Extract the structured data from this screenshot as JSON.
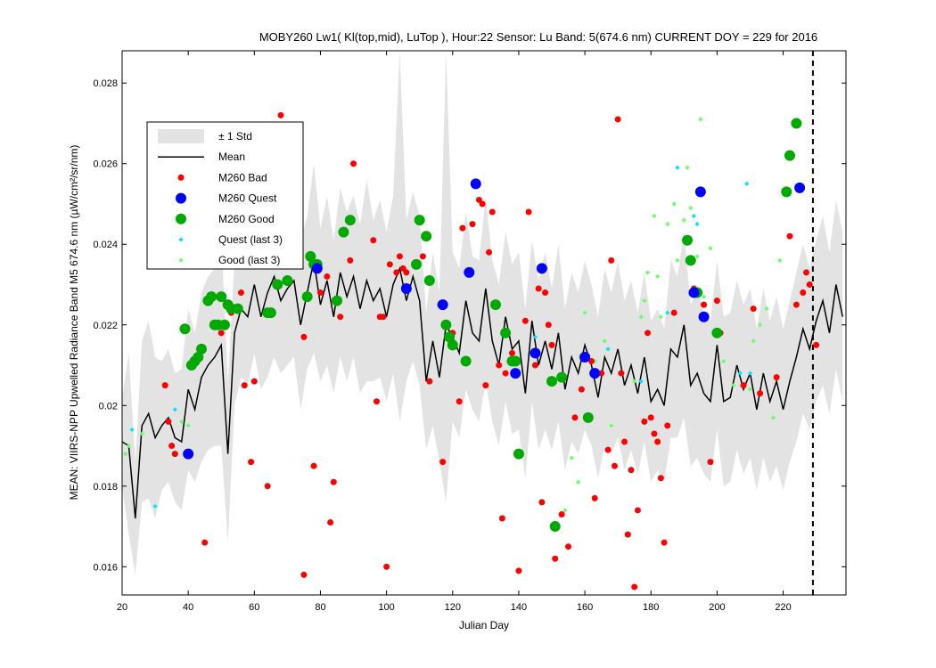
{
  "chart_data": {
    "type": "scatter",
    "title": "MOBY260   Lw1( Kl(top,mid), LuTop ),   Hour:22 Sensor: Lu Band: 5(674.6 nm)   CURRENT DOY = 229 for 2016",
    "xlabel": "Julian Day",
    "ylabel": "MEAN: VIIRS-NPP Upwelled Radiance Band M5 674.6 nm (µW/cm²/sr/nm)",
    "xlim": [
      20,
      239
    ],
    "ylim": [
      0.0153,
      0.0288
    ],
    "xticks": [
      20,
      40,
      60,
      80,
      100,
      120,
      140,
      160,
      180,
      200,
      220
    ],
    "yticks": [
      0.016,
      0.018,
      0.02,
      0.022,
      0.024,
      0.026,
      0.028
    ],
    "ytick_labels": [
      "0.016",
      "0.018",
      "0.02",
      "0.022",
      "0.024",
      "0.026",
      "0.028"
    ],
    "current_doy": 229,
    "legend": {
      "placement": "upper-left",
      "entries": [
        "± 1 Std",
        "Mean",
        "M260 Bad",
        "M260 Quest",
        "M260 Good",
        "Quest (last 3)",
        "Good (last 3)"
      ]
    },
    "colors": {
      "std": "#e3e3e3",
      "mean": "#000000",
      "bad": "#ff0000",
      "quest": "#0000ff",
      "good": "#00aa00",
      "quest_last3": "#00e5ff",
      "good_last3": "#66ff66",
      "current_doy_line": "#000000"
    },
    "mean_series": {
      "x": [
        20,
        22,
        24,
        26,
        28,
        30,
        32,
        34,
        36,
        38,
        40,
        42,
        44,
        46,
        48,
        50,
        52,
        54,
        56,
        58,
        60,
        62,
        64,
        66,
        68,
        70,
        72,
        74,
        76,
        78,
        80,
        82,
        84,
        86,
        88,
        90,
        92,
        94,
        96,
        98,
        100,
        102,
        104,
        106,
        108,
        110,
        112,
        114,
        116,
        118,
        120,
        122,
        124,
        126,
        128,
        130,
        132,
        134,
        136,
        138,
        140,
        142,
        144,
        146,
        148,
        150,
        152,
        154,
        156,
        158,
        160,
        162,
        164,
        166,
        168,
        170,
        172,
        174,
        176,
        178,
        180,
        182,
        184,
        186,
        188,
        190,
        192,
        194,
        196,
        198,
        200,
        202,
        204,
        206,
        208,
        210,
        212,
        214,
        216,
        218,
        220,
        222,
        224,
        226,
        228,
        230,
        232,
        234,
        236,
        238
      ],
      "y": [
        0.0191,
        0.019,
        0.0172,
        0.0195,
        0.0198,
        0.0192,
        0.0195,
        0.0197,
        0.0192,
        0.0191,
        0.0204,
        0.0199,
        0.0207,
        0.021,
        0.0212,
        0.0215,
        0.0188,
        0.0218,
        0.0224,
        0.0222,
        0.023,
        0.0222,
        0.0228,
        0.0232,
        0.0226,
        0.0229,
        0.0231,
        0.022,
        0.0228,
        0.0236,
        0.0225,
        0.0231,
        0.0222,
        0.0233,
        0.0227,
        0.0232,
        0.0224,
        0.0231,
        0.0226,
        0.0229,
        0.0222,
        0.023,
        0.0234,
        0.0226,
        0.0232,
        0.0226,
        0.0206,
        0.0216,
        0.0207,
        0.022,
        0.0217,
        0.0213,
        0.0226,
        0.0218,
        0.0216,
        0.0229,
        0.0216,
        0.021,
        0.0222,
        0.0214,
        0.0216,
        0.0203,
        0.0221,
        0.021,
        0.0216,
        0.0209,
        0.0218,
        0.0204,
        0.0212,
        0.0208,
        0.0215,
        0.021,
        0.0202,
        0.0212,
        0.0208,
        0.0214,
        0.0205,
        0.021,
        0.0203,
        0.0212,
        0.0201,
        0.0204,
        0.02,
        0.0214,
        0.0212,
        0.022,
        0.0205,
        0.0208,
        0.0203,
        0.0201,
        0.0215,
        0.0201,
        0.0202,
        0.021,
        0.0204,
        0.0208,
        0.0199,
        0.0208,
        0.0201,
        0.0206,
        0.0199,
        0.0206,
        0.0212,
        0.0219,
        0.0214,
        0.0221,
        0.0226,
        0.0218,
        0.023,
        0.0222
      ]
    },
    "std_upper": [
      0.0202,
      0.0213,
      0.0186,
      0.0216,
      0.0221,
      0.0212,
      0.0211,
      0.0214,
      0.0208,
      0.0209,
      0.0224,
      0.0218,
      0.0228,
      0.0232,
      0.0234,
      0.0242,
      0.0206,
      0.0236,
      0.0241,
      0.0239,
      0.0247,
      0.024,
      0.0249,
      0.0252,
      0.0244,
      0.0248,
      0.025,
      0.0241,
      0.0247,
      0.026,
      0.0244,
      0.0252,
      0.0241,
      0.0254,
      0.0248,
      0.0252,
      0.0245,
      0.0256,
      0.0246,
      0.0251,
      0.0243,
      0.0252,
      0.0288,
      0.0246,
      0.0253,
      0.0247,
      0.0223,
      0.0238,
      0.0228,
      0.0288,
      0.0238,
      0.0234,
      0.0248,
      0.0237,
      0.0236,
      0.0252,
      0.0236,
      0.023,
      0.0243,
      0.0235,
      0.0238,
      0.0224,
      0.0241,
      0.0231,
      0.0238,
      0.0229,
      0.024,
      0.0224,
      0.0233,
      0.0228,
      0.0236,
      0.023,
      0.0222,
      0.0234,
      0.0228,
      0.0236,
      0.0226,
      0.0231,
      0.0223,
      0.0233,
      0.0221,
      0.0224,
      0.0219,
      0.0236,
      0.0232,
      0.0243,
      0.0225,
      0.0229,
      0.0223,
      0.0221,
      0.0236,
      0.0222,
      0.0223,
      0.0231,
      0.0225,
      0.0229,
      0.0219,
      0.0229,
      0.0221,
      0.0227,
      0.0219,
      0.0226,
      0.0233,
      0.024,
      0.0234,
      0.0241,
      0.0247,
      0.0238,
      0.0251,
      0.0243
    ],
    "std_lower": [
      0.018,
      0.0168,
      0.0158,
      0.0176,
      0.0177,
      0.0172,
      0.0179,
      0.0181,
      0.0176,
      0.0174,
      0.0184,
      0.0181,
      0.0186,
      0.0189,
      0.019,
      0.019,
      0.0166,
      0.02,
      0.0207,
      0.0205,
      0.0213,
      0.0204,
      0.0207,
      0.0212,
      0.0208,
      0.021,
      0.0212,
      0.0199,
      0.0209,
      0.0213,
      0.0206,
      0.021,
      0.0203,
      0.0212,
      0.0206,
      0.0212,
      0.0203,
      0.0206,
      0.0206,
      0.0207,
      0.0201,
      0.0208,
      0.0196,
      0.0206,
      0.0211,
      0.0205,
      0.0189,
      0.0195,
      0.0186,
      0.0176,
      0.0196,
      0.0192,
      0.0204,
      0.0199,
      0.0196,
      0.0206,
      0.0196,
      0.019,
      0.0201,
      0.0193,
      0.0194,
      0.0182,
      0.0201,
      0.0189,
      0.0194,
      0.0189,
      0.0196,
      0.0184,
      0.0191,
      0.0188,
      0.0194,
      0.019,
      0.0182,
      0.019,
      0.0188,
      0.0192,
      0.0184,
      0.0189,
      0.0183,
      0.0191,
      0.0181,
      0.0184,
      0.0181,
      0.0192,
      0.0192,
      0.0197,
      0.0185,
      0.0187,
      0.0183,
      0.0181,
      0.0194,
      0.018,
      0.0181,
      0.0189,
      0.0183,
      0.0187,
      0.0179,
      0.0187,
      0.0181,
      0.0185,
      0.0179,
      0.0186,
      0.0191,
      0.0198,
      0.0194,
      0.0201,
      0.0205,
      0.0198,
      0.0209,
      0.0201
    ],
    "bad": {
      "x": [
        33,
        34,
        35,
        36,
        45,
        50,
        53,
        56,
        57,
        59,
        60,
        64,
        68,
        75,
        75,
        78,
        80,
        82,
        83,
        84,
        86,
        89,
        90,
        96,
        97,
        98,
        99,
        100,
        101,
        103,
        104,
        105,
        106,
        111,
        113,
        117,
        120,
        122,
        123,
        126,
        128,
        129,
        130,
        131,
        132,
        134,
        135,
        136,
        138,
        140,
        142,
        143,
        145,
        146,
        147,
        148,
        149,
        150,
        151,
        153,
        155,
        157,
        159,
        162,
        163,
        165,
        167,
        168,
        169,
        170,
        171,
        172,
        173,
        174,
        175,
        176,
        178,
        179,
        180,
        181,
        182,
        183,
        184,
        185,
        187,
        193,
        196,
        198,
        200,
        201,
        208,
        211,
        213,
        218,
        222,
        224,
        226,
        227,
        228,
        230
      ],
      "y": [
        0.0205,
        0.0196,
        0.019,
        0.0188,
        0.0166,
        0.0218,
        0.0223,
        0.0228,
        0.0205,
        0.0186,
        0.0206,
        0.018,
        0.0272,
        0.0217,
        0.0158,
        0.0185,
        0.0228,
        0.0232,
        0.0171,
        0.0181,
        0.0222,
        0.0236,
        0.026,
        0.0241,
        0.0201,
        0.0222,
        0.0222,
        0.016,
        0.0235,
        0.0233,
        0.0237,
        0.0234,
        0.0233,
        0.0237,
        0.0206,
        0.0186,
        0.0218,
        0.0201,
        0.0244,
        0.0245,
        0.0251,
        0.025,
        0.0205,
        0.0238,
        0.0248,
        0.021,
        0.0172,
        0.0208,
        0.0213,
        0.0159,
        0.0221,
        0.0248,
        0.021,
        0.0229,
        0.0176,
        0.0228,
        0.022,
        0.0215,
        0.0162,
        0.0173,
        0.0165,
        0.0197,
        0.0204,
        0.0211,
        0.0177,
        0.0208,
        0.0189,
        0.0236,
        0.0185,
        0.0271,
        0.0208,
        0.0191,
        0.0168,
        0.0184,
        0.0155,
        0.0174,
        0.0196,
        0.0218,
        0.0197,
        0.0193,
        0.0191,
        0.0182,
        0.0166,
        0.0195,
        0.0223,
        0.0229,
        0.0225,
        0.0186,
        0.0226,
        0.0218,
        0.0205,
        0.0224,
        0.0203,
        0.0207,
        0.0242,
        0.0225,
        0.0228,
        0.0233,
        0.023,
        0.0215
      ]
    },
    "quest": {
      "x": [
        40,
        79,
        106,
        117,
        125,
        127,
        139,
        145,
        147,
        160,
        163,
        193,
        195,
        196,
        225
      ],
      "y": [
        0.0188,
        0.0234,
        0.0229,
        0.0225,
        0.0233,
        0.0255,
        0.0208,
        0.0213,
        0.0234,
        0.0212,
        0.0208,
        0.0228,
        0.0253,
        0.0222,
        0.0254
      ]
    },
    "good": {
      "x": [
        39,
        41,
        42,
        43,
        44,
        46,
        47,
        48,
        49,
        50,
        51,
        52,
        53,
        55,
        64,
        65,
        67,
        70,
        76,
        77,
        78,
        79,
        85,
        87,
        89,
        109,
        110,
        112,
        113,
        118,
        119,
        120,
        124,
        133,
        136,
        138,
        139,
        140,
        150,
        151,
        153,
        161,
        191,
        192,
        194,
        200,
        221,
        222,
        224
      ],
      "y": [
        0.0219,
        0.021,
        0.0211,
        0.0212,
        0.0214,
        0.0226,
        0.0227,
        0.022,
        0.022,
        0.0227,
        0.022,
        0.0225,
        0.0224,
        0.0224,
        0.0223,
        0.0223,
        0.023,
        0.0231,
        0.0227,
        0.0237,
        0.0235,
        0.0235,
        0.0226,
        0.0243,
        0.0246,
        0.0235,
        0.0246,
        0.0242,
        0.0231,
        0.022,
        0.0217,
        0.0215,
        0.0211,
        0.0225,
        0.0218,
        0.0211,
        0.0211,
        0.0188,
        0.0206,
        0.017,
        0.0207,
        0.0197,
        0.0241,
        0.0236,
        0.0228,
        0.0218,
        0.0253,
        0.0262,
        0.027
      ]
    },
    "quest_last3": {
      "x": [
        23,
        30,
        36,
        145,
        167,
        177,
        185,
        188,
        193,
        194,
        207,
        209,
        210
      ],
      "y": [
        0.0194,
        0.0175,
        0.0199,
        0.0217,
        0.0214,
        0.0206,
        0.0223,
        0.0259,
        0.0247,
        0.0245,
        0.0208,
        0.0255,
        0.0208
      ]
    },
    "good_last3": {
      "x": [
        21,
        22,
        26,
        38,
        40,
        154,
        156,
        158,
        160,
        163,
        166,
        168,
        175,
        177,
        178,
        179,
        181,
        182,
        183,
        185,
        187,
        188,
        190,
        191,
        192,
        194,
        195,
        196,
        198,
        202,
        205,
        210,
        211,
        213,
        215,
        217,
        219
      ],
      "y": [
        0.0188,
        0.019,
        0.0193,
        0.0196,
        0.0195,
        0.0174,
        0.0187,
        0.0181,
        0.0223,
        0.0211,
        0.0216,
        0.0195,
        0.0206,
        0.0222,
        0.0226,
        0.0233,
        0.0247,
        0.0232,
        0.0222,
        0.0245,
        0.025,
        0.0236,
        0.0246,
        0.0259,
        0.0249,
        0.0237,
        0.0271,
        0.0227,
        0.0239,
        0.0211,
        0.0205,
        0.0204,
        0.0216,
        0.022,
        0.0224,
        0.0197,
        0.0236
      ]
    }
  }
}
